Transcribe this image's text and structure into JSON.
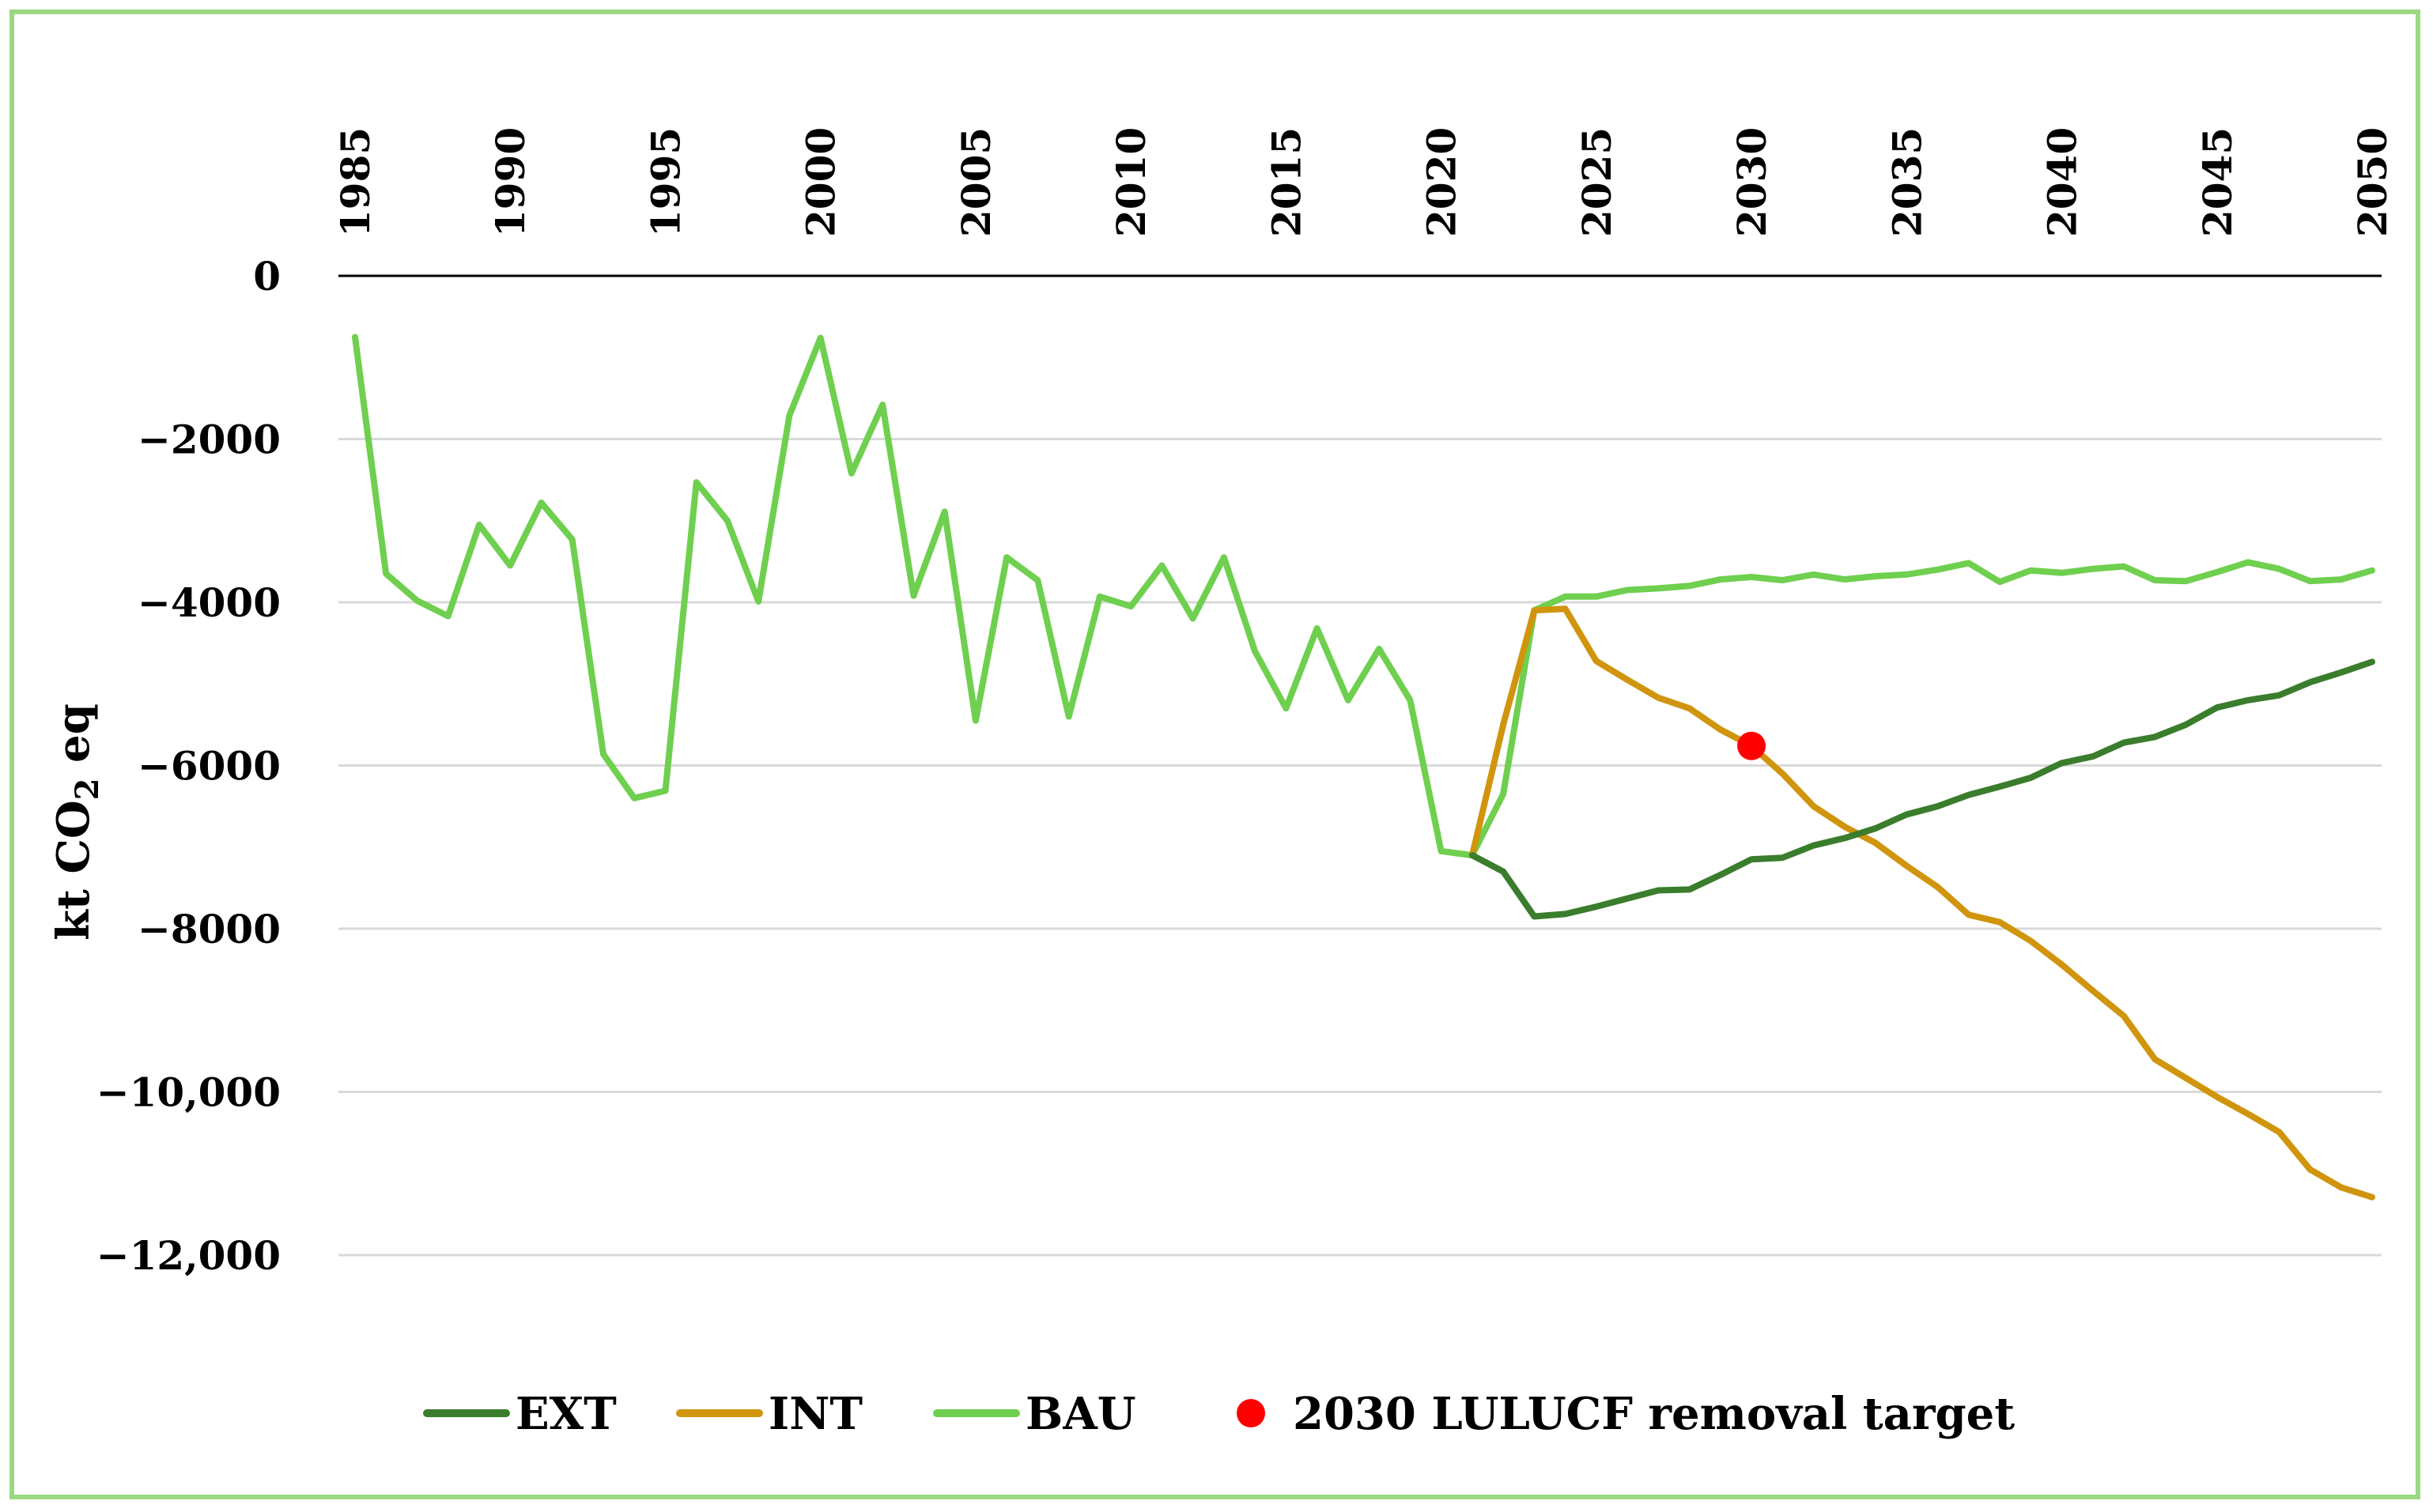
{
  "chart_data": {
    "type": "line",
    "title": "",
    "xlabel": "",
    "ylabel": "kt CO",
    "ylabel_subscript": "2",
    "ylabel_suffix": " eq",
    "ylim": [
      -12000,
      0
    ],
    "xlim": [
      1985,
      2050
    ],
    "x_tick_labels": [
      "1985",
      "1990",
      "1995",
      "2000",
      "2005",
      "2010",
      "2015",
      "2020",
      "2025",
      "2030",
      "2035",
      "2040",
      "2045",
      "2050"
    ],
    "y_ticks": [
      0,
      -2000,
      -4000,
      -6000,
      -8000,
      -10000,
      -12000
    ],
    "y_tick_labels": [
      "0",
      "−2000",
      "−4000",
      "−6000",
      "−8000",
      "−10,000",
      "−12,000"
    ],
    "grid": true,
    "legend_position": "bottom",
    "colors": {
      "EXT": "#3a7d2c",
      "INT": "#d0950d",
      "BAU": "#6fcf4f",
      "target": "#ff0000",
      "frame": "#9bd884"
    },
    "series": [
      {
        "name": "BAU",
        "x": [
          1985,
          1986,
          1987,
          1988,
          1989,
          1990,
          1991,
          1992,
          1993,
          1994,
          1995,
          1996,
          1997,
          1998,
          1999,
          2000,
          2001,
          2002,
          2003,
          2004,
          2005,
          2006,
          2007,
          2008,
          2009,
          2010,
          2011,
          2012,
          2013,
          2014,
          2015,
          2016,
          2017,
          2018,
          2019,
          2020,
          2021,
          2022,
          2023,
          2024,
          2025,
          2026,
          2027,
          2028,
          2029,
          2030,
          2031,
          2032,
          2033,
          2034,
          2035,
          2036,
          2037,
          2038,
          2039,
          2040,
          2041,
          2042,
          2043,
          2044,
          2045,
          2046,
          2047,
          2048,
          2049,
          2050
        ],
        "values": [
          -750,
          -3650,
          -3980,
          -4170,
          -3050,
          -3550,
          -2780,
          -3230,
          -5860,
          -6400,
          -6310,
          -2530,
          -3000,
          -3990,
          -1710,
          -760,
          -2420,
          -1580,
          -3920,
          -2890,
          -5450,
          -3450,
          -3730,
          -5400,
          -3930,
          -4050,
          -3550,
          -4200,
          -3450,
          -4600,
          -5300,
          -4320,
          -5200,
          -4570,
          -5200,
          -7050,
          -7100,
          -6350,
          -4100,
          -3930,
          -3930,
          -3850,
          -3830,
          -3800,
          -3720,
          -3690,
          -3730,
          -3660,
          -3720,
          -3680,
          -3660,
          -3600,
          -3520,
          -3750,
          -3610,
          -3640,
          -3590,
          -3560,
          -3730,
          -3740,
          -3630,
          -3510,
          -3590,
          -3740,
          -3720,
          -3610
        ]
      },
      {
        "name": "INT",
        "x": [
          2021,
          2022,
          2023,
          2024,
          2025,
          2026,
          2027,
          2028,
          2029,
          2030,
          2031,
          2032,
          2033,
          2034,
          2035,
          2036,
          2037,
          2038,
          2039,
          2040,
          2041,
          2042,
          2043,
          2044,
          2045,
          2046,
          2047,
          2048,
          2049,
          2050
        ],
        "values": [
          -7100,
          -5500,
          -4100,
          -4080,
          -4720,
          -4950,
          -5170,
          -5300,
          -5560,
          -5760,
          -6100,
          -6500,
          -6750,
          -6950,
          -7230,
          -7490,
          -7830,
          -7920,
          -8150,
          -8440,
          -8760,
          -9070,
          -9600,
          -9830,
          -10060,
          -10270,
          -10490,
          -10950,
          -11170,
          -11290
        ]
      },
      {
        "name": "EXT",
        "x": [
          2021,
          2022,
          2023,
          2024,
          2025,
          2026,
          2027,
          2028,
          2029,
          2030,
          2031,
          2032,
          2033,
          2034,
          2035,
          2036,
          2037,
          2038,
          2039,
          2040,
          2041,
          2042,
          2043,
          2044,
          2045,
          2046,
          2047,
          2048,
          2049,
          2050
        ],
        "values": [
          -7100,
          -7300,
          -7850,
          -7820,
          -7730,
          -7630,
          -7530,
          -7520,
          -7340,
          -7150,
          -7130,
          -6980,
          -6890,
          -6770,
          -6600,
          -6500,
          -6360,
          -6260,
          -6150,
          -5970,
          -5890,
          -5720,
          -5650,
          -5500,
          -5290,
          -5200,
          -5140,
          -4980,
          -4860,
          -4730
        ]
      }
    ],
    "points": [
      {
        "name": "2030 LULUCF removal target",
        "x": 2030,
        "y": -5760
      }
    ],
    "legend": [
      {
        "key": "EXT",
        "label": "EXT",
        "kind": "line"
      },
      {
        "key": "INT",
        "label": "INT",
        "kind": "line"
      },
      {
        "key": "BAU",
        "label": "BAU",
        "kind": "line"
      },
      {
        "key": "target",
        "label": "2030 LULUCF removal target",
        "kind": "dot"
      }
    ]
  }
}
